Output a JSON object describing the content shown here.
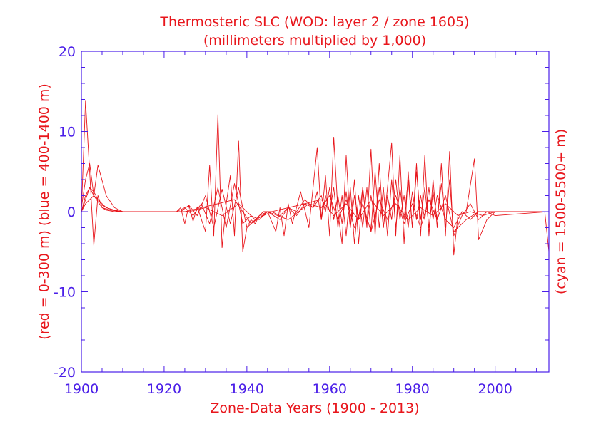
{
  "chart_data": {
    "type": "line",
    "title": "Thermosteric SLC (WOD: layer 2 / zone 1605)",
    "subtitle": "(millimeters multiplied by 1,000)",
    "xlabel": "Zone-Data Years (1900 - 2013)",
    "ylabel": "(red = 0-300 m)  (blue = 400-1400 m)",
    "ylabel_right": "(cyan = 1500-5500+ m)",
    "xlim": [
      1900,
      2013
    ],
    "ylim": [
      -20,
      20
    ],
    "x_ticks": [
      "1900",
      "1920",
      "1940",
      "1960",
      "1980",
      "2000"
    ],
    "y_ticks": [
      "20",
      "10",
      "0",
      "-10",
      "-20"
    ],
    "colors": {
      "series": "#e8161c",
      "axis": "#4a1ee8",
      "labels": "#e8161c"
    },
    "series": [
      {
        "x": [
          1900,
          1901,
          1902,
          1903,
          1904,
          1905,
          1906,
          1908,
          1910,
          1923,
          1924,
          1925,
          1926,
          1927,
          1928,
          1930,
          1931,
          1932,
          1933,
          1934,
          1935,
          1936,
          1937,
          1938,
          1939,
          1940,
          1941,
          1942,
          1943,
          1945,
          1947,
          1948,
          1949,
          1950,
          1951,
          1953,
          1955,
          1957,
          1958,
          1959,
          1960,
          1961,
          1962,
          1963,
          1964,
          1965,
          1966,
          1967,
          1968,
          1969,
          1970,
          1971,
          1972,
          1973,
          1974,
          1975,
          1976,
          1977,
          1978,
          1979,
          1980,
          1981,
          1982,
          1983,
          1984,
          1985,
          1986,
          1987,
          1988,
          1989,
          1990,
          1991,
          1993,
          1995,
          1996,
          1998,
          2000,
          2012,
          2013
        ],
        "y": [
          0,
          13.8,
          5,
          -4.2,
          2,
          0.5,
          0.2,
          0,
          0,
          0,
          0.5,
          -1.5,
          0.8,
          -1.2,
          0.6,
          -2.5,
          5.8,
          -3,
          12.1,
          -4.5,
          1,
          4.5,
          -3,
          8.8,
          -5,
          -2,
          -1,
          -1.5,
          -0.5,
          0,
          -2.5,
          0.5,
          -3,
          1,
          -1.5,
          2.5,
          -2,
          8,
          -1,
          4.5,
          -3,
          9.3,
          0,
          -4,
          7,
          -2,
          4,
          -4,
          3,
          -2,
          7.8,
          -3,
          6,
          -2,
          3,
          8.6,
          -3,
          7,
          -4,
          5,
          -2,
          6,
          -3,
          7,
          -3,
          4,
          -2,
          6,
          -3,
          7.5,
          -5.4,
          -0.5,
          0,
          6.6,
          -3.5,
          -1,
          0,
          0,
          -5
        ]
      },
      {
        "x": [
          1900,
          1901,
          1902,
          1903,
          1904,
          1906,
          1908,
          1910,
          1923,
          1925,
          1927,
          1929,
          1931,
          1933,
          1935,
          1937,
          1939,
          1941,
          1943,
          1945,
          1948,
          1950,
          1952,
          1954,
          1956,
          1957,
          1958,
          1959,
          1960,
          1961,
          1962,
          1963,
          1964,
          1965,
          1966,
          1967,
          1968,
          1969,
          1970,
          1971,
          1972,
          1973,
          1974,
          1975,
          1976,
          1977,
          1978,
          1979,
          1980,
          1981,
          1982,
          1983,
          1984,
          1985,
          1986,
          1987,
          1988,
          1989,
          1990,
          1992,
          1994,
          1996,
          1998,
          2000,
          2013
        ],
        "y": [
          0.5,
          4,
          6,
          2,
          5.8,
          2,
          0.5,
          0,
          0,
          0.5,
          -0.5,
          1,
          -1.5,
          3,
          -2,
          3.5,
          -1.5,
          -0.5,
          -1,
          0,
          -1,
          0.5,
          -0.5,
          1,
          0.5,
          2.5,
          -1,
          2,
          0,
          3,
          -2,
          2,
          -3,
          3,
          -4,
          2,
          -2,
          3,
          -2.5,
          5,
          -2,
          3,
          -3,
          4,
          -2,
          3,
          -1,
          4,
          -2,
          5,
          -1,
          3,
          -2,
          2.5,
          -1,
          3.5,
          -2,
          4,
          -3,
          -0.5,
          1,
          -1,
          0,
          -0.5,
          0
        ]
      },
      {
        "x": [
          1900,
          1902,
          1903,
          1904,
          1905,
          1906,
          1908,
          1910,
          1924,
          1926,
          1928,
          1930,
          1932,
          1934,
          1936,
          1938,
          1940,
          1942,
          1944,
          1946,
          1948,
          1950,
          1952,
          1954,
          1956,
          1958,
          1959,
          1960,
          1961,
          1962,
          1963,
          1964,
          1965,
          1966,
          1967,
          1968,
          1969,
          1970,
          1971,
          1972,
          1973,
          1974,
          1975,
          1976,
          1977,
          1978,
          1979,
          1980,
          1981,
          1982,
          1983,
          1984,
          1985,
          1986,
          1988,
          1990,
          1992,
          1994,
          1996,
          2000,
          2013
        ],
        "y": [
          0,
          3,
          2.5,
          1.5,
          1,
          0.5,
          0.2,
          0,
          0,
          0.8,
          -0.5,
          2,
          -2,
          2.8,
          -1.5,
          3,
          -2,
          -1,
          0,
          0,
          -0.5,
          0.5,
          0,
          1.5,
          0.5,
          2,
          0,
          3,
          -1,
          2,
          -1.5,
          2.5,
          -2,
          2,
          -1,
          3,
          -1.5,
          2,
          -1,
          3,
          -2,
          2,
          -1,
          4,
          -1,
          2,
          -2,
          2.5,
          -1,
          2,
          -1,
          3,
          -1,
          2,
          -1,
          -2,
          0,
          -1,
          0,
          0,
          0
        ]
      },
      {
        "x": [
          1900,
          1901,
          1902,
          1903,
          1904,
          1905,
          1907,
          1909,
          1925,
          1929,
          1933,
          1937,
          1941,
          1945,
          1950,
          1955,
          1958,
          1960,
          1962,
          1964,
          1966,
          1968,
          1970,
          1972,
          1974,
          1976,
          1978,
          1980,
          1982,
          1984,
          1986,
          1988,
          1990,
          1993,
          1996,
          2000,
          2013
        ],
        "y": [
          0,
          2,
          3,
          2,
          1.5,
          0.8,
          0.3,
          0,
          0,
          0.5,
          1,
          1.5,
          -1.5,
          0,
          -1,
          1,
          0.5,
          2,
          -1,
          1.5,
          -2,
          1,
          -2.5,
          1.5,
          -1,
          2,
          -1.5,
          1,
          -2,
          1.5,
          -1,
          2,
          -2.5,
          -1,
          0,
          0,
          0
        ]
      },
      {
        "x": [
          1900,
          1901,
          1903,
          1905,
          1907,
          1910,
          1926,
          1930,
          1934,
          1938,
          1942,
          1946,
          1950,
          1954,
          1958,
          1961,
          1964,
          1967,
          1970,
          1973,
          1976,
          1979,
          1982,
          1985,
          1988,
          1991,
          1994,
          1997,
          2000,
          2013
        ],
        "y": [
          0,
          1,
          2,
          0.5,
          0.2,
          0,
          0,
          0.5,
          -0.5,
          1,
          -1,
          0,
          0.5,
          1,
          1.5,
          -0.5,
          1,
          -1,
          1.5,
          -0.5,
          1,
          -1,
          0.5,
          -0.5,
          1,
          -0.5,
          0,
          -0.5,
          0,
          0
        ]
      }
    ]
  }
}
